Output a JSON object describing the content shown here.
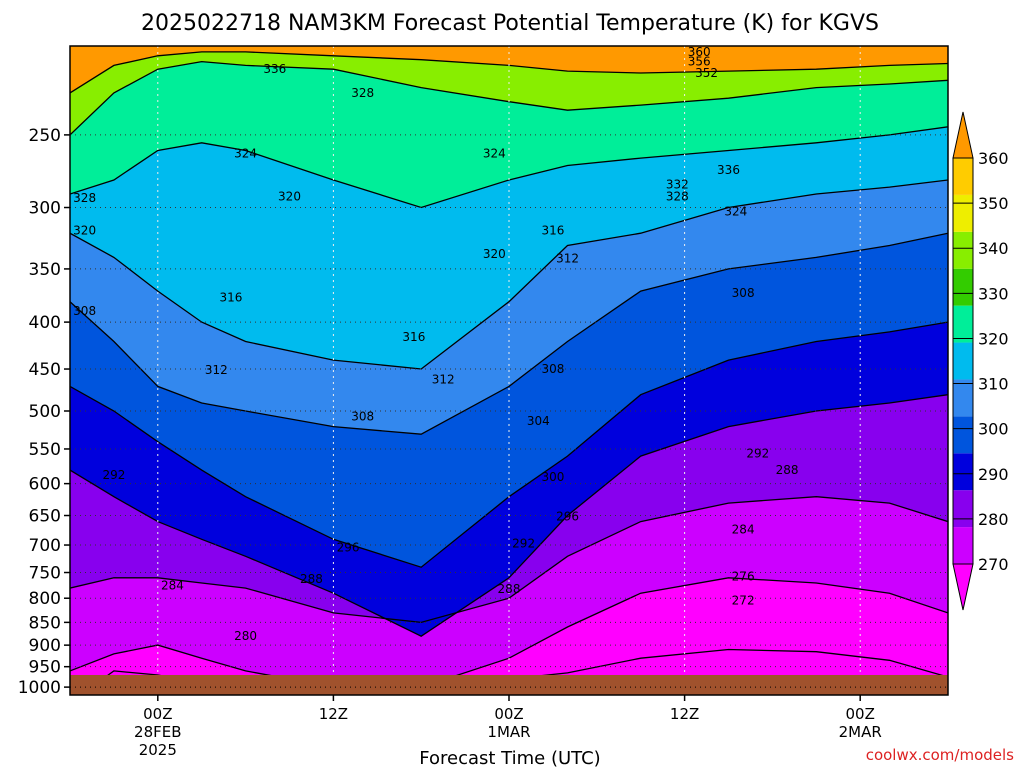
{
  "chart_data": {
    "type": "heatmap",
    "title": "2025022718 NAM3KM Forecast Potential Temperature (K) for KGVS",
    "xlabel": "Forecast Time (UTC)",
    "ylabel": "",
    "credit": "coolwx.com/models",
    "yscale": "log",
    "ylim": [
      1020,
      200
    ],
    "xlim_hours": [
      -6,
      54
    ],
    "y_ticks": [
      250,
      300,
      350,
      400,
      450,
      500,
      550,
      600,
      650,
      700,
      750,
      800,
      850,
      900,
      950,
      1000
    ],
    "y_tick_labels": [
      "250",
      "300",
      "350",
      "400",
      "450",
      "500",
      "550",
      "600",
      "650",
      "700",
      "750",
      "800",
      "850",
      "900",
      "950",
      "1000"
    ],
    "x_ticks": [
      {
        "hour": 0,
        "lines": [
          "00Z",
          "28FEB",
          "2025"
        ]
      },
      {
        "hour": 12,
        "lines": [
          "12Z"
        ]
      },
      {
        "hour": 24,
        "lines": [
          "00Z",
          "1MAR"
        ]
      },
      {
        "hour": 36,
        "lines": [
          "12Z"
        ]
      },
      {
        "hour": 48,
        "lines": [
          "00Z",
          "2MAR"
        ]
      }
    ],
    "grid": true,
    "colorbar": {
      "position": "right",
      "levels": [
        270,
        280,
        290,
        300,
        310,
        320,
        330,
        340,
        350,
        360
      ],
      "labels": [
        "270",
        "280",
        "290",
        "300",
        "310",
        "320",
        "330",
        "340",
        "350",
        "360"
      ],
      "colors": [
        "#ff00ff",
        "#cc00ff",
        "#8800ee",
        "#0000dd",
        "#0055dd",
        "#3388ee",
        "#00bbee",
        "#00ee99",
        "#33cc00",
        "#88ee00",
        "#eeee00",
        "#ffcc00",
        "#ff9900"
      ]
    },
    "series": [
      {
        "theta": 270,
        "p": [
          null,
          960,
          970,
          990,
          1000,
          1000,
          1000,
          980,
          965,
          930,
          910,
          915,
          935,
          975
        ]
      },
      {
        "theta": 280,
        "p": [
          960,
          920,
          900,
          930,
          960,
          1000,
          1000,
          930,
          860,
          790,
          760,
          770,
          790,
          830
        ]
      },
      {
        "theta": 288,
        "p": [
          780,
          760,
          760,
          770,
          780,
          830,
          850,
          800,
          720,
          660,
          630,
          620,
          630,
          660
        ]
      },
      {
        "theta": 292,
        "p": [
          580,
          620,
          660,
          690,
          720,
          790,
          880,
          760,
          650,
          560,
          520,
          500,
          490,
          480
        ]
      },
      {
        "theta": 300,
        "p": [
          470,
          500,
          540,
          580,
          620,
          690,
          740,
          620,
          560,
          480,
          440,
          420,
          410,
          400
        ]
      },
      {
        "theta": 308,
        "p": [
          380,
          420,
          470,
          490,
          500,
          520,
          530,
          470,
          420,
          370,
          350,
          340,
          330,
          320
        ]
      },
      {
        "theta": 316,
        "p": [
          320,
          340,
          370,
          400,
          420,
          440,
          450,
          380,
          330,
          320,
          300,
          290,
          285,
          280
        ]
      },
      {
        "theta": 324,
        "p": [
          290,
          280,
          260,
          255,
          260,
          280,
          300,
          280,
          270,
          265,
          260,
          255,
          250,
          245
        ]
      },
      {
        "theta": 336,
        "p": [
          250,
          225,
          212,
          208,
          210,
          212,
          222,
          230,
          235,
          232,
          228,
          222,
          220,
          218
        ]
      },
      {
        "theta": 352,
        "p": [
          225,
          210,
          205,
          203,
          203,
          205,
          207,
          210,
          213,
          214,
          213,
          212,
          210,
          209
        ]
      }
    ],
    "series_hours": [
      -6,
      -3,
      0,
      3,
      6,
      12,
      18,
      24,
      28,
      33,
      39,
      45,
      50,
      54
    ],
    "contour_labels": [
      {
        "text": "360",
        "hour": 37,
        "p": 203
      },
      {
        "text": "356",
        "hour": 37,
        "p": 208
      },
      {
        "text": "352",
        "hour": 37.5,
        "p": 214
      },
      {
        "text": "336",
        "hour": 8,
        "p": 212
      },
      {
        "text": "328",
        "hour": 14,
        "p": 225
      },
      {
        "text": "324",
        "hour": 6,
        "p": 262
      },
      {
        "text": "324",
        "hour": 23,
        "p": 262
      },
      {
        "text": "336",
        "hour": 39,
        "p": 273
      },
      {
        "text": "332",
        "hour": 35.5,
        "p": 283
      },
      {
        "text": "328",
        "hour": 35.5,
        "p": 292
      },
      {
        "text": "324",
        "hour": 39.5,
        "p": 303
      },
      {
        "text": "328",
        "hour": -5,
        "p": 293
      },
      {
        "text": "320",
        "hour": 9,
        "p": 292
      },
      {
        "text": "320",
        "hour": -5,
        "p": 318
      },
      {
        "text": "316",
        "hour": 27,
        "p": 318
      },
      {
        "text": "312",
        "hour": 28,
        "p": 341
      },
      {
        "text": "320",
        "hour": 23,
        "p": 337
      },
      {
        "text": "316",
        "hour": 5,
        "p": 376
      },
      {
        "text": "308",
        "hour": 40,
        "p": 372
      },
      {
        "text": "308",
        "hour": -5,
        "p": 389
      },
      {
        "text": "316",
        "hour": 17.5,
        "p": 415
      },
      {
        "text": "312",
        "hour": 4,
        "p": 451
      },
      {
        "text": "312",
        "hour": 19.5,
        "p": 462
      },
      {
        "text": "308",
        "hour": 27,
        "p": 450
      },
      {
        "text": "308",
        "hour": 14,
        "p": 507
      },
      {
        "text": "304",
        "hour": 26,
        "p": 513
      },
      {
        "text": "292",
        "hour": -3,
        "p": 587
      },
      {
        "text": "300",
        "hour": 27,
        "p": 590
      },
      {
        "text": "292",
        "hour": 41,
        "p": 556
      },
      {
        "text": "288",
        "hour": 43,
        "p": 580
      },
      {
        "text": "296",
        "hour": 28,
        "p": 652
      },
      {
        "text": "296",
        "hour": 13,
        "p": 704
      },
      {
        "text": "292",
        "hour": 25,
        "p": 697
      },
      {
        "text": "284",
        "hour": 40,
        "p": 673
      },
      {
        "text": "284",
        "hour": 1,
        "p": 775
      },
      {
        "text": "288",
        "hour": 10.5,
        "p": 762
      },
      {
        "text": "288",
        "hour": 24,
        "p": 782
      },
      {
        "text": "276",
        "hour": 40,
        "p": 758
      },
      {
        "text": "272",
        "hour": 40,
        "p": 805
      },
      {
        "text": "280",
        "hour": 6,
        "p": 880
      }
    ]
  }
}
